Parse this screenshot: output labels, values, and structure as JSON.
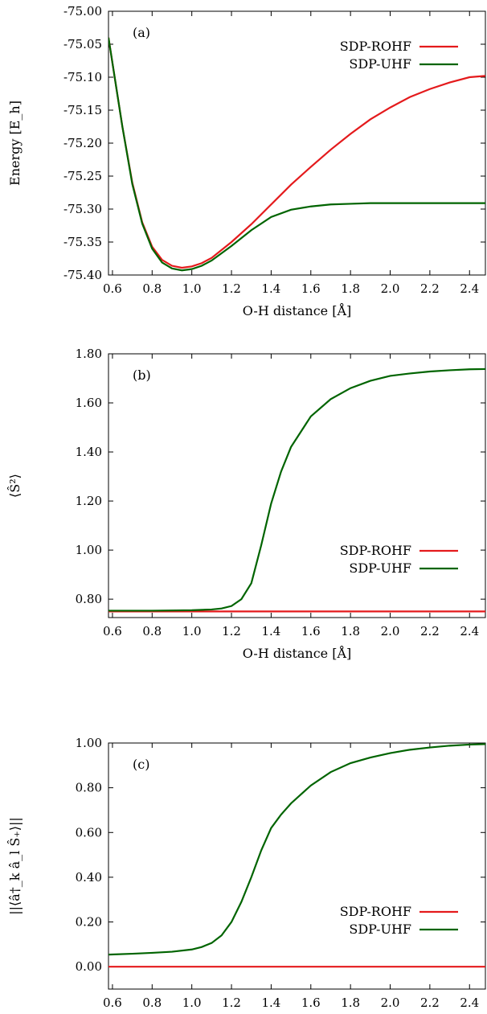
{
  "chart_data": [
    {
      "type": "line",
      "panel_label": "(a)",
      "xlabel": "O-H distance [Å]",
      "ylabel": "Energy [E_h]",
      "xlim": [
        0.58,
        2.48
      ],
      "ylim": [
        -75.4,
        -75.0
      ],
      "xticks": [
        0.6,
        0.8,
        1.0,
        1.2,
        1.4,
        1.6,
        1.8,
        2.0,
        2.2,
        2.4
      ],
      "xtick_labels": [
        "0.6",
        "0.8",
        "1.0",
        "1.2",
        "1.4",
        "1.6",
        "1.8",
        "2.0",
        "2.2",
        "2.4"
      ],
      "yticks": [
        -75.0,
        -75.05,
        -75.1,
        -75.15,
        -75.2,
        -75.25,
        -75.3,
        -75.35,
        -75.4
      ],
      "ytick_labels": [
        "-75.00",
        "-75.05",
        "-75.10",
        "-75.15",
        "-75.20",
        "-75.25",
        "-75.30",
        "-75.35",
        "-75.40"
      ],
      "legend_position": "top-right",
      "series": [
        {
          "name": "SDP-ROHF",
          "color": "#e41a1c",
          "x": [
            0.58,
            0.65,
            0.7,
            0.75,
            0.8,
            0.85,
            0.9,
            0.95,
            1.0,
            1.05,
            1.1,
            1.2,
            1.3,
            1.4,
            1.5,
            1.6,
            1.7,
            1.8,
            1.9,
            2.0,
            2.1,
            2.2,
            2.3,
            2.4,
            2.48
          ],
          "y": [
            -75.04,
            -75.175,
            -75.26,
            -75.32,
            -75.357,
            -75.377,
            -75.386,
            -75.389,
            -75.387,
            -75.382,
            -75.374,
            -75.35,
            -75.323,
            -75.293,
            -75.263,
            -75.236,
            -75.21,
            -75.186,
            -75.164,
            -75.146,
            -75.13,
            -75.118,
            -75.108,
            -75.1,
            -75.098
          ]
        },
        {
          "name": "SDP-UHF",
          "color": "#006400",
          "x": [
            0.58,
            0.65,
            0.7,
            0.75,
            0.8,
            0.85,
            0.9,
            0.95,
            1.0,
            1.05,
            1.1,
            1.2,
            1.3,
            1.4,
            1.5,
            1.6,
            1.7,
            1.8,
            1.9,
            2.0,
            2.1,
            2.2,
            2.3,
            2.4,
            2.48
          ],
          "y": [
            -75.04,
            -75.175,
            -75.262,
            -75.322,
            -75.36,
            -75.381,
            -75.39,
            -75.393,
            -75.391,
            -75.386,
            -75.378,
            -75.356,
            -75.332,
            -75.312,
            -75.301,
            -75.296,
            -75.293,
            -75.292,
            -75.291,
            -75.291,
            -75.291,
            -75.291,
            -75.291,
            -75.291,
            -75.291
          ]
        }
      ]
    },
    {
      "type": "line",
      "panel_label": "(b)",
      "xlabel": "O-H distance [Å]",
      "ylabel": "⟨Ŝ²⟩",
      "xlim": [
        0.58,
        2.48
      ],
      "ylim": [
        0.725,
        1.8
      ],
      "xticks": [
        0.6,
        0.8,
        1.0,
        1.2,
        1.4,
        1.6,
        1.8,
        2.0,
        2.2,
        2.4
      ],
      "xtick_labels": [
        "0.6",
        "0.8",
        "1.0",
        "1.2",
        "1.4",
        "1.6",
        "1.8",
        "2.0",
        "2.2",
        "2.4"
      ],
      "yticks": [
        0.8,
        1.0,
        1.2,
        1.4,
        1.6,
        1.8
      ],
      "ytick_labels": [
        "0.80",
        "1.00",
        "1.20",
        "1.40",
        "1.60",
        "1.80"
      ],
      "legend_position": "bottom-right",
      "series": [
        {
          "name": "SDP-ROHF",
          "color": "#e41a1c",
          "x": [
            0.58,
            2.48
          ],
          "y": [
            0.75,
            0.75
          ]
        },
        {
          "name": "SDP-UHF",
          "color": "#006400",
          "x": [
            0.58,
            0.8,
            1.0,
            1.1,
            1.15,
            1.2,
            1.25,
            1.3,
            1.35,
            1.4,
            1.45,
            1.5,
            1.6,
            1.7,
            1.8,
            1.9,
            2.0,
            2.1,
            2.2,
            2.3,
            2.4,
            2.48
          ],
          "y": [
            0.753,
            0.753,
            0.755,
            0.758,
            0.762,
            0.772,
            0.8,
            0.865,
            1.02,
            1.19,
            1.32,
            1.42,
            1.545,
            1.615,
            1.66,
            1.69,
            1.71,
            1.72,
            1.728,
            1.733,
            1.737,
            1.738
          ]
        }
      ]
    },
    {
      "type": "line",
      "panel_label": "(c)",
      "xlabel": "O-H distance [Å]",
      "ylabel": "||⟨â†_k â_l Ŝ₊⟩||",
      "xlim": [
        0.58,
        2.48
      ],
      "ylim": [
        -0.1,
        1.0
      ],
      "xticks": [
        0.6,
        0.8,
        1.0,
        1.2,
        1.4,
        1.6,
        1.8,
        2.0,
        2.2,
        2.4
      ],
      "xtick_labels": [
        "0.6",
        "0.8",
        "1.0",
        "1.2",
        "1.4",
        "1.6",
        "1.8",
        "2.0",
        "2.2",
        "2.4"
      ],
      "yticks": [
        0.0,
        0.2,
        0.4,
        0.6,
        0.8,
        1.0
      ],
      "ytick_labels": [
        "0.00",
        "0.20",
        "0.40",
        "0.60",
        "0.80",
        "1.00"
      ],
      "legend_position": "bottom-right",
      "series": [
        {
          "name": "SDP-ROHF",
          "color": "#e41a1c",
          "x": [
            0.58,
            2.48
          ],
          "y": [
            0.0,
            0.0
          ]
        },
        {
          "name": "SDP-UHF",
          "color": "#006400",
          "x": [
            0.58,
            0.7,
            0.8,
            0.9,
            1.0,
            1.05,
            1.1,
            1.15,
            1.2,
            1.25,
            1.3,
            1.35,
            1.4,
            1.45,
            1.5,
            1.55,
            1.6,
            1.7,
            1.8,
            1.9,
            2.0,
            2.1,
            2.2,
            2.3,
            2.4,
            2.48
          ],
          "y": [
            0.054,
            0.058,
            0.062,
            0.067,
            0.077,
            0.088,
            0.106,
            0.14,
            0.2,
            0.29,
            0.4,
            0.52,
            0.62,
            0.68,
            0.73,
            0.77,
            0.81,
            0.87,
            0.91,
            0.935,
            0.955,
            0.97,
            0.98,
            0.988,
            0.993,
            0.995
          ]
        }
      ]
    }
  ]
}
